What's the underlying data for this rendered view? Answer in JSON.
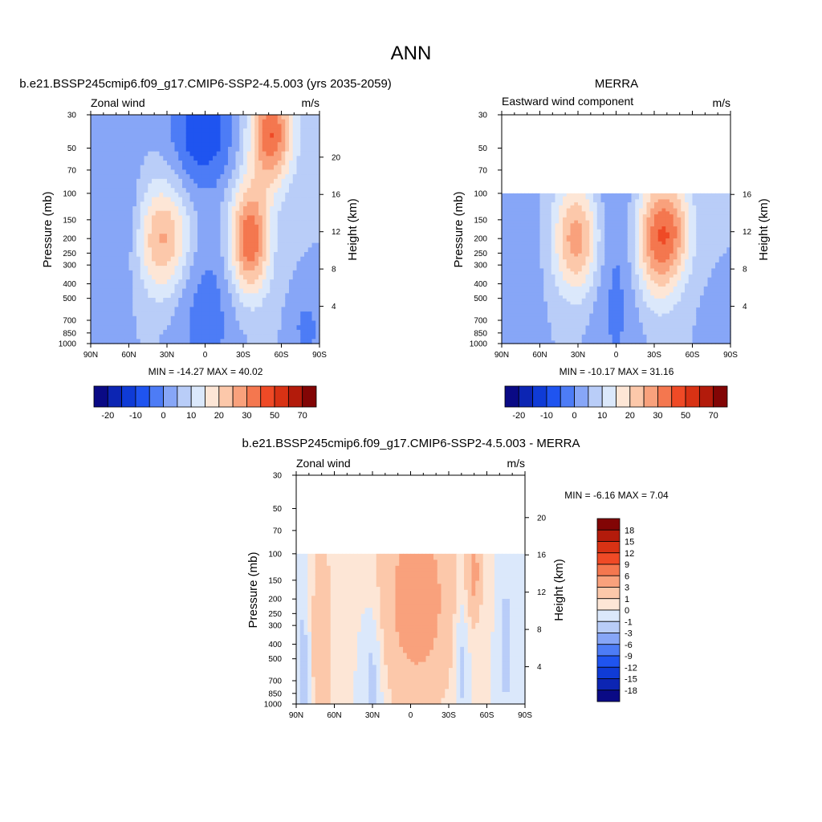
{
  "figure": {
    "title": "ANN"
  },
  "chart_data": [
    {
      "type": "heatmap",
      "title": "b.e21.BSSP245cmip6.f09_g17.CMIP6-SSP2-4.5.003 (yrs 2035-2059)",
      "left_label": "Zonal wind",
      "units": "m/s",
      "ylabel": "Pressure (mb)",
      "y2label": "Height (km)",
      "x_ticks": [
        "90N",
        "60N",
        "30N",
        "0",
        "30S",
        "60S",
        "90S"
      ],
      "y_ticks": [
        30,
        50,
        70,
        100,
        150,
        200,
        250,
        300,
        400,
        500,
        700,
        850,
        1000
      ],
      "height_ticks": [
        4,
        8,
        12,
        16,
        20
      ],
      "ylim": [
        1000,
        30
      ],
      "data_top_mb": 30,
      "stats_text": "MIN = -14.27  MAX =  40.02",
      "levels": [
        -25,
        -20,
        -15,
        -10,
        -5,
        0,
        5,
        10,
        15,
        20,
        25,
        30,
        40,
        50,
        60,
        70
      ],
      "colorbar_labels": [
        "-20",
        "-10",
        "0",
        "10",
        "20",
        "30",
        "50",
        "70"
      ],
      "features": [
        {
          "lat": 33,
          "p": 200,
          "amp": 21,
          "slat": 15,
          "sp": 0.6
        },
        {
          "lat": -35,
          "p": 200,
          "amp": 30,
          "slat": 11,
          "sp": 0.6
        },
        {
          "lat": -52,
          "p": 40,
          "amp": 30,
          "slat": 12,
          "sp": 0.55
        },
        {
          "lat": 2,
          "p": 40,
          "amp": -14,
          "slat": 18,
          "sp": 0.6
        },
        {
          "lat": 0,
          "p": 600,
          "amp": -8,
          "slat": 17,
          "sp": 0.9
        },
        {
          "lat": -80,
          "p": 800,
          "amp": -7,
          "slat": 8,
          "sp": 0.35
        },
        {
          "lat": 62,
          "p": 150,
          "amp": -6,
          "slat": 10,
          "sp": 0.8
        }
      ]
    },
    {
      "type": "heatmap",
      "title": "MERRA",
      "left_label": "Eastward wind component",
      "units": "m/s",
      "ylabel": "Pressure (mb)",
      "y2label": "Height (km)",
      "x_ticks": [
        "90N",
        "60N",
        "30N",
        "0",
        "30S",
        "60S",
        "90S"
      ],
      "y_ticks": [
        30,
        50,
        70,
        100,
        150,
        200,
        250,
        300,
        400,
        500,
        700,
        850,
        1000
      ],
      "height_ticks": [
        4,
        8,
        12,
        16
      ],
      "ylim": [
        1000,
        30
      ],
      "data_top_mb": 100,
      "stats_text": "MIN = -10.17  MAX =  31.16",
      "levels": [
        -25,
        -20,
        -15,
        -10,
        -5,
        0,
        5,
        10,
        15,
        20,
        25,
        30,
        40,
        50,
        60,
        70
      ],
      "colorbar_labels": [
        "-20",
        "-10",
        "0",
        "10",
        "20",
        "30",
        "50",
        "70"
      ],
      "features": [
        {
          "lat": 31,
          "p": 200,
          "amp": 23,
          "slat": 13,
          "sp": 0.6
        },
        {
          "lat": -33,
          "p": 200,
          "amp": 27,
          "slat": 13,
          "sp": 0.65
        },
        {
          "lat": -48,
          "p": 170,
          "amp": 10,
          "slat": 10,
          "sp": 0.5
        },
        {
          "lat": 0,
          "p": 300,
          "amp": -7,
          "slat": 14,
          "sp": 1.5
        },
        {
          "lat": -80,
          "p": 800,
          "amp": -5,
          "slat": 8,
          "sp": 0.35
        },
        {
          "lat": 70,
          "p": 250,
          "amp": -3,
          "slat": 12,
          "sp": 1.0
        }
      ]
    },
    {
      "type": "heatmap",
      "title": "b.e21.BSSP245cmip6.f09_g17.CMIP6-SSP2-4.5.003 - MERRA",
      "left_label": "Zonal wind",
      "units": "m/s",
      "ylabel": "Pressure (mb)",
      "y2label": "Height (km)",
      "x_ticks": [
        "90N",
        "60N",
        "30N",
        "0",
        "30S",
        "60S",
        "90S"
      ],
      "y_ticks": [
        30,
        50,
        70,
        100,
        150,
        200,
        250,
        300,
        400,
        500,
        700,
        850,
        1000
      ],
      "height_ticks": [
        4,
        8,
        12,
        16,
        20
      ],
      "ylim": [
        1000,
        30
      ],
      "data_top_mb": 100,
      "stats_text": "MIN =  -6.16  MAX =   7.04",
      "levels": [
        -18,
        -15,
        -12,
        -9,
        -6,
        -3,
        -1,
        0,
        1,
        3,
        6,
        9,
        12,
        15,
        18
      ],
      "colorbar_labels": [
        "18",
        "15",
        "12",
        "9",
        "6",
        "3",
        "1",
        "0",
        "-1",
        "-3",
        "-6",
        "-9",
        "-12",
        "-15",
        "-18"
      ],
      "features": [
        {
          "lat": -5,
          "p": 200,
          "amp": 4.5,
          "slat": 20,
          "sp": 1.1
        },
        {
          "lat": -50,
          "p": 130,
          "amp": 3.5,
          "slat": 4,
          "sp": 0.5
        },
        {
          "lat": 70,
          "p": 400,
          "amp": 2.5,
          "slat": 6,
          "sp": 1.2
        },
        {
          "lat": 30,
          "p": 600,
          "amp": -1.8,
          "slat": 6,
          "sp": 0.8
        },
        {
          "lat": 84,
          "p": 600,
          "amp": -1.6,
          "slat": 4,
          "sp": 1.0
        },
        {
          "lat": -40,
          "p": 500,
          "amp": -1.8,
          "slat": 4,
          "sp": 0.8
        },
        {
          "lat": -75,
          "p": 400,
          "amp": -1.6,
          "slat": 4,
          "sp": 0.8
        }
      ]
    }
  ],
  "colors": {
    "main_palette": [
      "#0a0a85",
      "#0c25b3",
      "#0f3bd6",
      "#1f54f0",
      "#4d7cf6",
      "#87a6f7",
      "#b9cdf8",
      "#dbe8fb",
      "#fde6d6",
      "#fcc8aa",
      "#f9a17c",
      "#f4774f",
      "#ef4a26",
      "#d83214",
      "#b31b0b",
      "#820505"
    ],
    "diff_palette": [
      "#0a0a85",
      "#0c25b3",
      "#0f3bd6",
      "#1f54f0",
      "#4d7cf6",
      "#87a6f7",
      "#b9cdf8",
      "#dbe8fb",
      "#fde6d6",
      "#fcc8aa",
      "#f9a17c",
      "#f4774f",
      "#ef4a26",
      "#d83214",
      "#b31b0b",
      "#820505"
    ]
  }
}
